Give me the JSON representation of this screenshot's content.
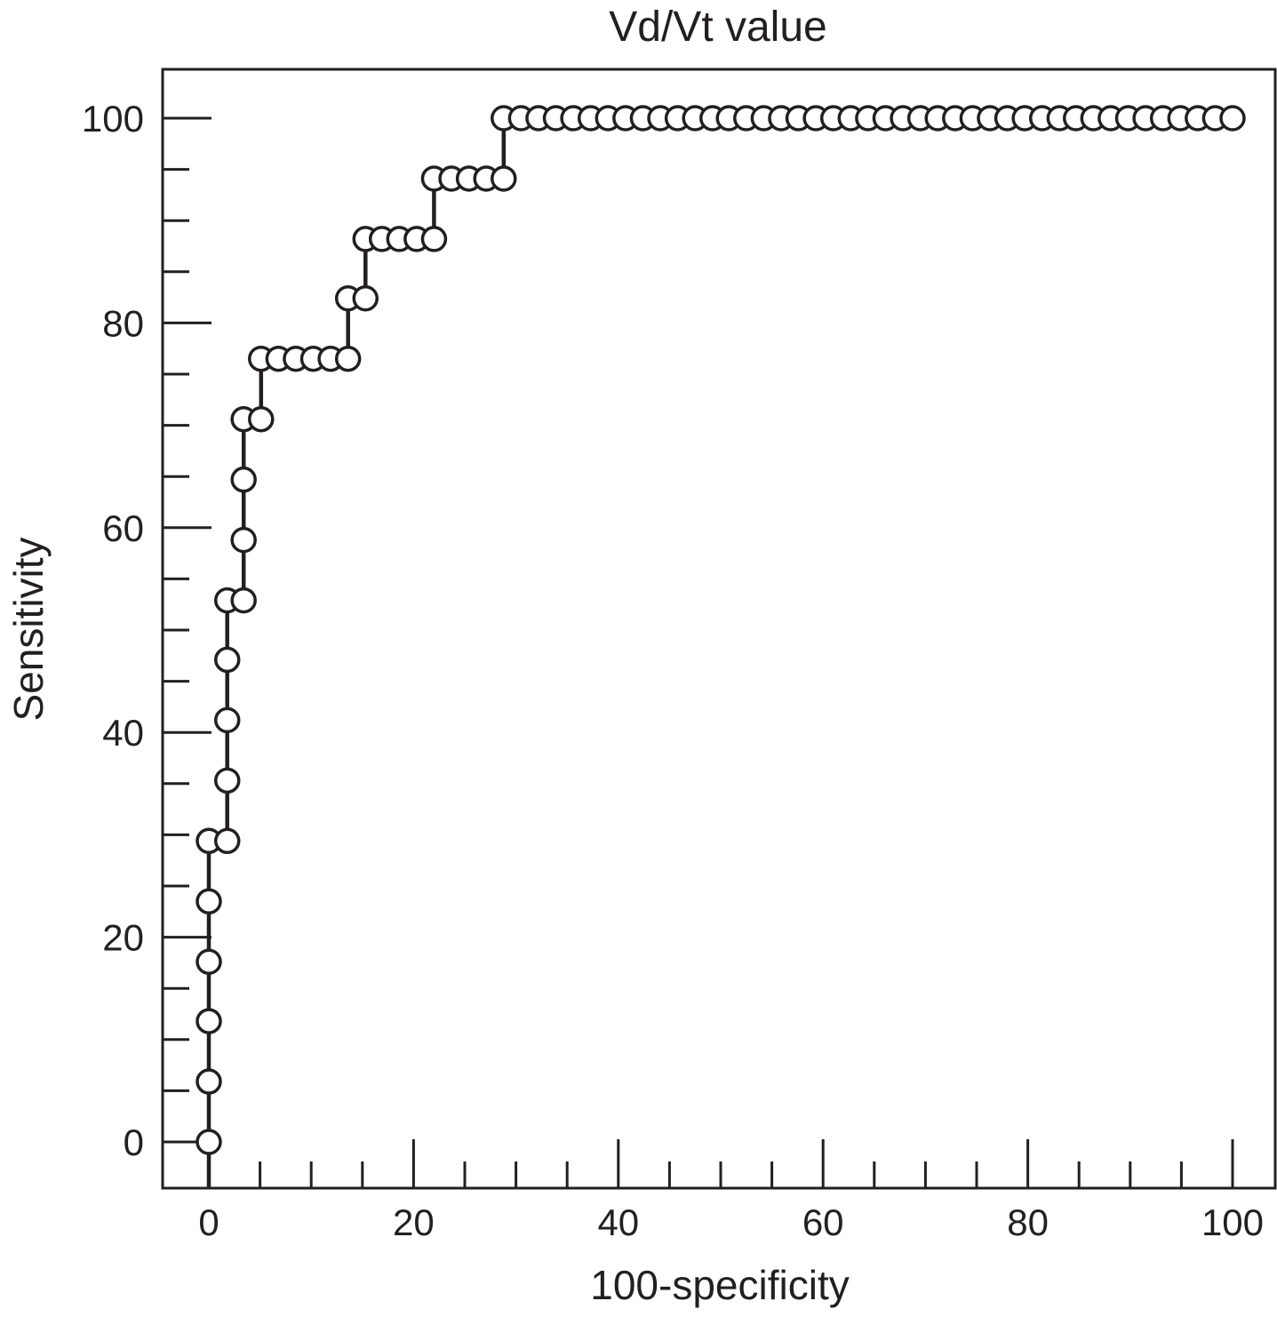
{
  "chart_data": {
    "type": "line",
    "title": "Vd/Vt value",
    "xlabel": "100-specificity",
    "ylabel": "Sensitivity",
    "xlim": [
      -4.5,
      104
    ],
    "ylim": [
      -4.5,
      105
    ],
    "x_major_ticks": [
      0,
      20,
      40,
      60,
      80,
      100
    ],
    "y_major_ticks": [
      0,
      20,
      40,
      60,
      80,
      100
    ],
    "x_tick_labels": [
      "0",
      "20",
      "40",
      "60",
      "80",
      "100"
    ],
    "y_tick_labels": [
      "0",
      "20",
      "40",
      "60",
      "80",
      "100"
    ],
    "minor_tick_step": 5,
    "grid": false,
    "legend": "none",
    "marker": "open-circle",
    "line_style": "step",
    "colors": {
      "line": "#231f20",
      "marker_fill": "#ffffff",
      "text": "#231f20"
    },
    "series": [
      {
        "points": [
          [
            0,
            0
          ],
          [
            0,
            5.9
          ],
          [
            0,
            11.8
          ],
          [
            0,
            17.6
          ],
          [
            0,
            23.5
          ],
          [
            0,
            29.4
          ],
          [
            1.8,
            29.4
          ],
          [
            1.8,
            35.3
          ],
          [
            1.8,
            41.2
          ],
          [
            1.8,
            47.1
          ],
          [
            1.8,
            52.9
          ],
          [
            3.4,
            52.9
          ],
          [
            3.4,
            58.8
          ],
          [
            3.4,
            64.7
          ],
          [
            3.4,
            70.6
          ],
          [
            5.1,
            70.6
          ],
          [
            5.1,
            76.5
          ],
          [
            6.8,
            76.5
          ],
          [
            8.5,
            76.5
          ],
          [
            10.2,
            76.5
          ],
          [
            11.9,
            76.5
          ],
          [
            13.6,
            76.5
          ],
          [
            13.6,
            82.4
          ],
          [
            15.3,
            82.4
          ],
          [
            15.3,
            88.2
          ],
          [
            16.9,
            88.2
          ],
          [
            18.6,
            88.2
          ],
          [
            20.3,
            88.2
          ],
          [
            22.0,
            88.2
          ],
          [
            22.0,
            94.1
          ],
          [
            23.7,
            94.1
          ],
          [
            25.4,
            94.1
          ],
          [
            27.1,
            94.1
          ],
          [
            28.8,
            94.1
          ],
          [
            28.8,
            100
          ],
          [
            30.5,
            100
          ],
          [
            32.2,
            100
          ],
          [
            33.9,
            100
          ],
          [
            35.6,
            100
          ],
          [
            37.3,
            100
          ],
          [
            39.0,
            100
          ],
          [
            40.7,
            100
          ],
          [
            42.4,
            100
          ],
          [
            44.1,
            100
          ],
          [
            45.8,
            100
          ],
          [
            47.5,
            100
          ],
          [
            49.2,
            100
          ],
          [
            50.8,
            100
          ],
          [
            52.5,
            100
          ],
          [
            54.2,
            100
          ],
          [
            55.9,
            100
          ],
          [
            57.6,
            100
          ],
          [
            59.3,
            100
          ],
          [
            61.0,
            100
          ],
          [
            62.7,
            100
          ],
          [
            64.4,
            100
          ],
          [
            66.1,
            100
          ],
          [
            67.8,
            100
          ],
          [
            69.5,
            100
          ],
          [
            71.2,
            100
          ],
          [
            72.9,
            100
          ],
          [
            74.6,
            100
          ],
          [
            76.3,
            100
          ],
          [
            78.0,
            100
          ],
          [
            79.7,
            100
          ],
          [
            81.4,
            100
          ],
          [
            83.1,
            100
          ],
          [
            84.7,
            100
          ],
          [
            86.4,
            100
          ],
          [
            88.1,
            100
          ],
          [
            89.8,
            100
          ],
          [
            91.5,
            100
          ],
          [
            93.2,
            100
          ],
          [
            94.9,
            100
          ],
          [
            96.6,
            100
          ],
          [
            98.3,
            100
          ],
          [
            100,
            100
          ]
        ]
      }
    ]
  }
}
